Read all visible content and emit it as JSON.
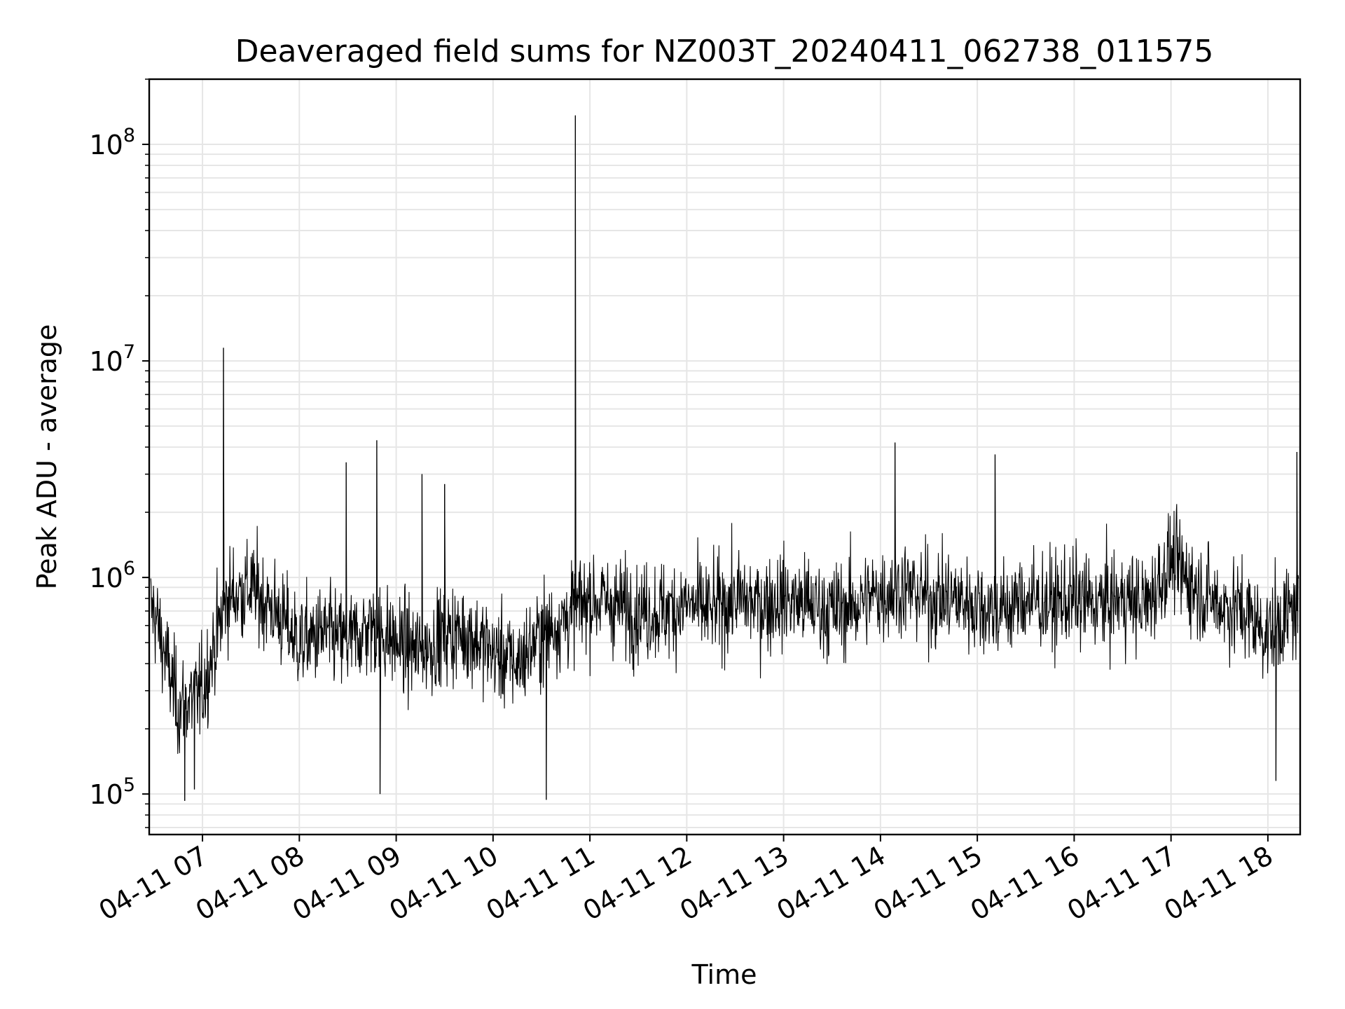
{
  "chart_data": {
    "type": "line",
    "title": "Deaveraged field sums for NZ003T_20240411_062738_011575",
    "xlabel": "Time",
    "ylabel": "Peak ADU - average",
    "yscale": "log",
    "ylim": [
      65000,
      200000000
    ],
    "xlim": [
      "04-11 06:27",
      "04-11 18:20"
    ],
    "grid": true,
    "line_color": "#000000",
    "x_tick_labels": [
      "04-11 07",
      "04-11 08",
      "04-11 09",
      "04-11 10",
      "04-11 11",
      "04-11 12",
      "04-11 13",
      "04-11 14",
      "04-11 15",
      "04-11 16",
      "04-11 17",
      "04-11 18"
    ],
    "y_tick_labels": [
      {
        "value": 100000,
        "base": "10",
        "exp": "5"
      },
      {
        "value": 1000000,
        "base": "10",
        "exp": "6"
      },
      {
        "value": 10000000,
        "base": "10",
        "exp": "7"
      },
      {
        "value": 100000000,
        "base": "10",
        "exp": "8"
      }
    ],
    "series": [
      {
        "x": [
          "04-11 06:30",
          "04-11 06:45",
          "04-11 07:00",
          "04-11 07:15",
          "04-11 07:30",
          "04-11 07:45",
          "04-11 08:00",
          "04-11 08:15",
          "04-11 08:30",
          "04-11 08:45",
          "04-11 09:00",
          "04-11 09:15",
          "04-11 09:30",
          "04-11 09:45",
          "04-11 10:00",
          "04-11 10:15",
          "04-11 10:30",
          "04-11 10:45",
          "04-11 11:00",
          "04-11 11:15",
          "04-11 11:30",
          "04-11 11:45",
          "04-11 12:00",
          "04-11 12:15",
          "04-11 12:30",
          "04-11 12:45",
          "04-11 13:00",
          "04-11 13:15",
          "04-11 13:30",
          "04-11 13:45",
          "04-11 14:00",
          "04-11 14:15",
          "04-11 14:30",
          "04-11 14:45",
          "04-11 15:00",
          "04-11 15:15",
          "04-11 15:30",
          "04-11 15:45",
          "04-11 16:00",
          "04-11 16:15",
          "04-11 16:30",
          "04-11 16:45",
          "04-11 17:00",
          "04-11 17:15",
          "04-11 17:30",
          "04-11 17:45",
          "04-11 18:00",
          "04-11 18:15"
        ],
        "y": [
          700000,
          250000,
          300000,
          800000,
          900000,
          700000,
          500000,
          550000,
          500000,
          600000,
          500000,
          450000,
          550000,
          550000,
          450000,
          400000,
          550000,
          650000,
          800000,
          750000,
          700000,
          700000,
          750000,
          700000,
          800000,
          750000,
          800000,
          750000,
          700000,
          750000,
          850000,
          900000,
          800000,
          800000,
          750000,
          700000,
          800000,
          750000,
          800000,
          750000,
          800000,
          750000,
          1200000,
          900000,
          750000,
          700000,
          550000,
          700000
        ]
      }
    ],
    "spikes": [
      {
        "x": "04-11 07:13",
        "y": 11500000
      },
      {
        "x": "04-11 08:29",
        "y": 3400000
      },
      {
        "x": "04-11 08:48",
        "y": 4300000
      },
      {
        "x": "04-11 09:16",
        "y": 3000000
      },
      {
        "x": "04-11 09:30",
        "y": 2700000
      },
      {
        "x": "04-11 10:51",
        "y": 136000000
      },
      {
        "x": "04-11 14:09",
        "y": 4200000
      },
      {
        "x": "04-11 15:11",
        "y": 3700000
      },
      {
        "x": "04-11 18:18",
        "y": 3800000
      }
    ],
    "dips": [
      {
        "x": "04-11 06:49",
        "y": 93000
      },
      {
        "x": "04-11 06:55",
        "y": 105000
      },
      {
        "x": "04-11 08:50",
        "y": 100000
      },
      {
        "x": "04-11 10:33",
        "y": 94000
      },
      {
        "x": "04-11 18:05",
        "y": 115000
      }
    ]
  }
}
